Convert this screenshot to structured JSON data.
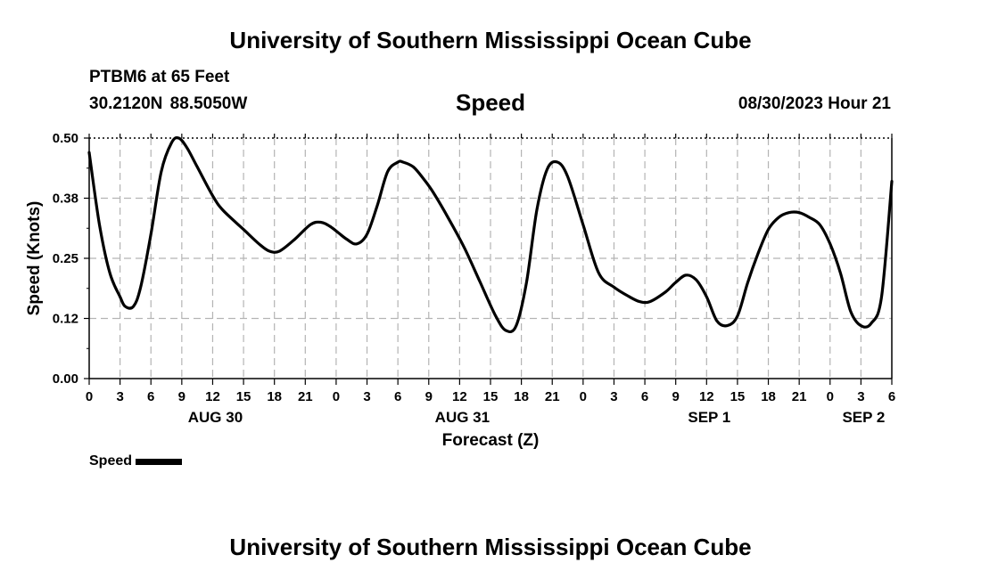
{
  "header": {
    "title": "University of Southern Mississippi Ocean Cube",
    "station": "PTBM6 at 65 Feet",
    "coords": "30.2120N  88.5050W",
    "chart_title": "Speed",
    "timestamp": "08/30/2023 Hour 21"
  },
  "footer": {
    "title": "University of Southern Mississippi Ocean Cube"
  },
  "legend": {
    "label": "Speed"
  },
  "colors": {
    "line": "#000000",
    "grid": "#b4b4b4",
    "axis": "#000000"
  },
  "chart_data": {
    "type": "line",
    "title": "Speed",
    "xlabel": "Forecast (Z)",
    "ylabel": "Speed (Knots)",
    "ylim": [
      0,
      0.5
    ],
    "yticks": [
      0.0,
      0.125,
      0.25,
      0.375,
      0.5
    ],
    "ytick_labels": [
      "0.00",
      "0.12",
      "0.25",
      "0.38",
      "0.50"
    ],
    "xlim_hours": [
      0,
      78
    ],
    "xtick_step_hours": 3,
    "xtick_labels": [
      "0",
      "3",
      "6",
      "9",
      "12",
      "15",
      "18",
      "21",
      "0",
      "3",
      "6",
      "9",
      "12",
      "15",
      "18",
      "21",
      "0",
      "3",
      "6",
      "9",
      "12",
      "15",
      "18",
      "21",
      "0",
      "3",
      "6"
    ],
    "day_labels": [
      {
        "label": "AUG 30",
        "hour": 12
      },
      {
        "label": "AUG 31",
        "hour": 36
      },
      {
        "label": "SEP 1",
        "hour": 60
      },
      {
        "label": "SEP 2",
        "hour": 75
      }
    ],
    "grid": true,
    "series": [
      {
        "name": "Speed",
        "x_hours": [
          0,
          1,
          2,
          3,
          3.5,
          4.3,
          5,
          6,
          7,
          8,
          8.7,
          9.5,
          10.5,
          12,
          13,
          15,
          16.5,
          17.5,
          18.5,
          20,
          21.5,
          22.5,
          23.5,
          25,
          26,
          27,
          28,
          29,
          30,
          30.5,
          31.5,
          32.5,
          33.5,
          35,
          36.5,
          38,
          39.5,
          40.5,
          41.5,
          42.5,
          43.5,
          44.5,
          45.5,
          46.5,
          48,
          49.5,
          51,
          52.5,
          53.5,
          54.5,
          56,
          57,
          58,
          59,
          60,
          61,
          62,
          63,
          64,
          65,
          66,
          67,
          68,
          69,
          70,
          71,
          72,
          73,
          74,
          75,
          76,
          77,
          78
        ],
        "values": [
          0.47,
          0.32,
          0.22,
          0.17,
          0.15,
          0.15,
          0.19,
          0.3,
          0.43,
          0.49,
          0.5,
          0.48,
          0.44,
          0.38,
          0.35,
          0.31,
          0.28,
          0.265,
          0.265,
          0.29,
          0.32,
          0.325,
          0.315,
          0.29,
          0.28,
          0.3,
          0.36,
          0.43,
          0.45,
          0.45,
          0.44,
          0.415,
          0.385,
          0.33,
          0.27,
          0.2,
          0.13,
          0.1,
          0.11,
          0.2,
          0.35,
          0.435,
          0.45,
          0.42,
          0.32,
          0.22,
          0.19,
          0.17,
          0.16,
          0.16,
          0.18,
          0.2,
          0.215,
          0.205,
          0.17,
          0.12,
          0.11,
          0.13,
          0.2,
          0.26,
          0.31,
          0.335,
          0.345,
          0.345,
          0.335,
          0.32,
          0.28,
          0.22,
          0.14,
          0.11,
          0.115,
          0.17,
          0.41
        ]
      }
    ]
  }
}
